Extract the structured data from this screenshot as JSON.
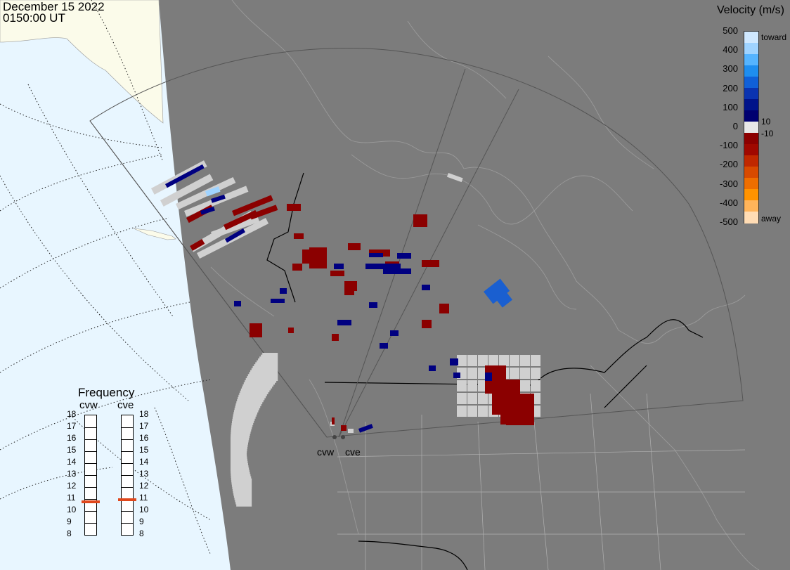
{
  "header": {
    "date": "December 15 2022",
    "time": "0150:00 UT"
  },
  "colorbar": {
    "title": "Velocity (m/s)",
    "ticks": [
      "500",
      "400",
      "300",
      "200",
      "100",
      "0",
      "-100",
      "-200",
      "-300",
      "-400",
      "-500"
    ],
    "toward_label": "toward",
    "away_label": "away",
    "inner_pos": "10",
    "inner_neg": "-10",
    "colors": [
      "#cfe8ff",
      "#9fd3ff",
      "#55b4ff",
      "#1e8ef0",
      "#1060d8",
      "#0a33b0",
      "#00138a",
      "#000070",
      "#e8e8e8",
      "#8c0000",
      "#a00800",
      "#c02800",
      "#d84a00",
      "#ee6e00",
      "#ff9300",
      "#ffb45a",
      "#ffdcb4"
    ]
  },
  "frequency": {
    "title": "Frequency",
    "radars": [
      {
        "name": "cvw",
        "freq": 10.7
      },
      {
        "name": "cve",
        "freq": 10.9
      }
    ],
    "scale": [
      "18",
      "17",
      "16",
      "15",
      "14",
      "13",
      "12",
      "11",
      "10",
      "9",
      "8"
    ],
    "marker_color": "#e0471c"
  },
  "map": {
    "ocean_color": "#e8f6ff",
    "land_color": "#7c7c7c",
    "night_edge_land_color": "#fbfbea",
    "stations": [
      "cvw",
      "cve"
    ],
    "scatter_colors": {
      "ground": "#d0d0d0",
      "away": "#8b0000",
      "toward": "#000080",
      "fast_toward": "#1a5fd0"
    }
  }
}
